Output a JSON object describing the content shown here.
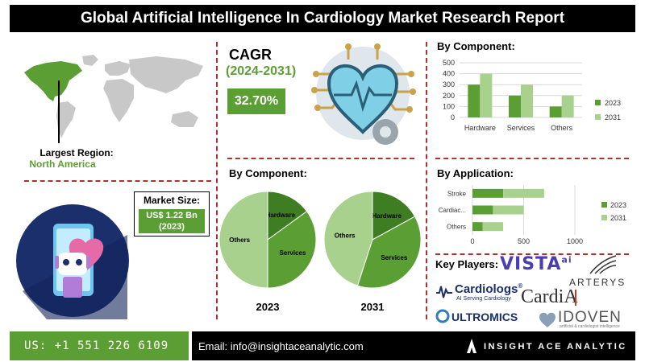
{
  "header": {
    "title": "Global Artificial Intelligence In Cardiology Market Research Report"
  },
  "largest_region": {
    "label": "Largest Region:",
    "value": "North America"
  },
  "market_size": {
    "label": "Market Size:",
    "value_line1": "US$ 1.22 Bn",
    "value_line2": "(2023)"
  },
  "cagr": {
    "label": "CAGR",
    "period": "(2024-2031)",
    "value": "32.70%"
  },
  "charts": {
    "component_bar_title": "By Component:",
    "component_pie_title": "By Component:",
    "application_title": "By Application:",
    "pie_years": [
      "2023",
      "2031"
    ]
  },
  "chart_data": [
    {
      "type": "bar",
      "title": "By Component:",
      "categories": [
        "Hardware",
        "Services",
        "Others"
      ],
      "series": [
        {
          "name": "2023",
          "values": [
            300,
            200,
            100
          ]
        },
        {
          "name": "2031",
          "values": [
            400,
            300,
            200
          ]
        }
      ],
      "ylim": [
        0,
        500
      ],
      "yticks": [
        0,
        100,
        200,
        300,
        400,
        500
      ],
      "legend": "right",
      "colors": [
        "#5b9e34",
        "#a9d18e"
      ]
    },
    {
      "type": "bar",
      "orientation": "horizontal",
      "stacked": true,
      "title": "By Application:",
      "categories": [
        "Stroke",
        "Cardiac...",
        "Others"
      ],
      "series": [
        {
          "name": "2023",
          "values": [
            300,
            200,
            100
          ]
        },
        {
          "name": "2031",
          "values": [
            400,
            300,
            200
          ]
        }
      ],
      "xlim": [
        0,
        1000
      ],
      "xticks": [
        0,
        500,
        1000
      ],
      "legend": "right",
      "colors": [
        "#5b9e34",
        "#a9d18e"
      ]
    },
    {
      "type": "pie",
      "title": "2023",
      "labels": [
        "Hardware",
        "Services",
        "Others"
      ],
      "values": [
        15,
        35,
        50
      ],
      "colors": [
        "#3f7d23",
        "#5b9e34",
        "#a9d18e"
      ]
    },
    {
      "type": "pie",
      "title": "2031",
      "labels": [
        "Hardware",
        "Services",
        "Others"
      ],
      "values": [
        17,
        38,
        45
      ],
      "colors": [
        "#3f7d23",
        "#5b9e34",
        "#a9d18e"
      ]
    }
  ],
  "key_players": {
    "label": "Key Players:",
    "vista": "VISTA",
    "vista_sup": "ai",
    "arterys": "ARTERYS",
    "cardiologs": "Cardiologs",
    "cardiologs_reg": "®",
    "cardiologs_tag": "AI Serving Cardiology",
    "cardia": "CardiA",
    "ultromics": "ULTROMICS",
    "idoven": "IDOVEN",
    "idoven_tag": "artificial & cardiologist intelligence"
  },
  "footer": {
    "phone": "US: +1 551 226 6109",
    "email": "Email: info@insightaceanalytic.com",
    "brand": "INSIGHT ACE ANALYTIC"
  }
}
